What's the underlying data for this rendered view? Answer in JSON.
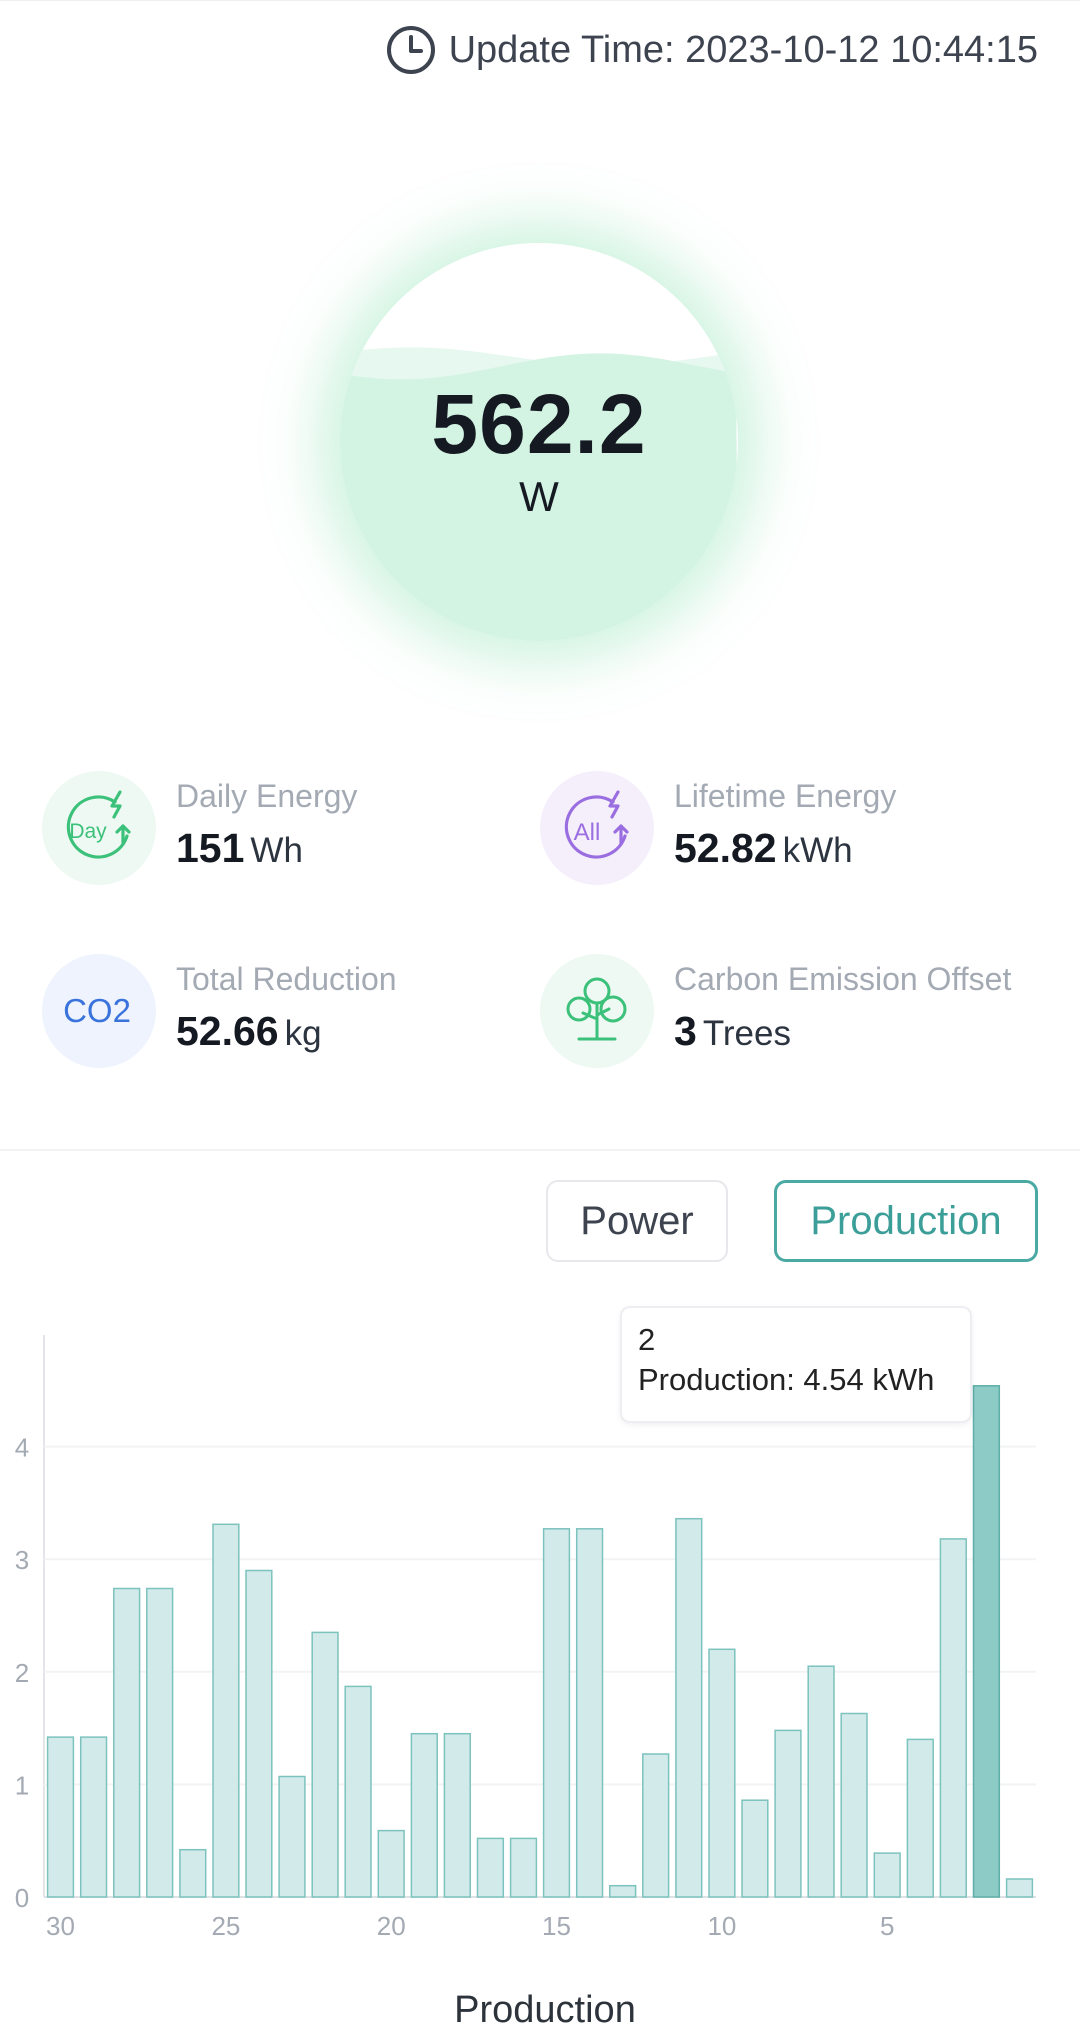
{
  "header": {
    "update_label": "Update Time: 2023-10-12 10:44:15",
    "icon": "clock-icon"
  },
  "gauge": {
    "value": "562.2",
    "unit": "W",
    "fill_level": 0.7,
    "colors": {
      "fill": "#d3f3e3",
      "glow": "#80e0aa"
    }
  },
  "stats": {
    "daily": {
      "label": "Daily Energy",
      "value": "151",
      "unit": "Wh",
      "icon": "day-energy-icon",
      "icon_text": "Day"
    },
    "lifetime": {
      "label": "Lifetime Energy",
      "value": "52.82",
      "unit": "kWh",
      "icon": "all-energy-icon",
      "icon_text": "All"
    },
    "reduction": {
      "label": "Total Reduction",
      "value": "52.66",
      "unit": "kg",
      "icon": "co2-icon",
      "icon_text": "CO2"
    },
    "offset": {
      "label": "Carbon Emission Offset",
      "value": "3",
      "unit": "Trees",
      "icon": "tree-icon"
    }
  },
  "toggle": {
    "power_label": "Power",
    "production_label": "Production",
    "active": "Production"
  },
  "tooltip": {
    "title": "2",
    "text": "Production: 4.54 kWh"
  },
  "chart_data": {
    "type": "bar",
    "xlabel": "Production",
    "ylabel": "",
    "ylim": [
      0,
      5
    ],
    "yticks": [
      0,
      1,
      2,
      3,
      4
    ],
    "grid": true,
    "highlight_index": 28,
    "categories": [
      "30",
      "29",
      "28",
      "27",
      "26",
      "25",
      "24",
      "23",
      "22",
      "21",
      "20",
      "19",
      "18",
      "17",
      "16",
      "15",
      "14",
      "13",
      "12",
      "11",
      "10",
      "9",
      "8",
      "7",
      "6",
      "5",
      "4",
      "3",
      "2",
      "1"
    ],
    "values": [
      1.42,
      1.42,
      2.74,
      2.74,
      0.42,
      3.31,
      2.9,
      1.07,
      2.35,
      1.87,
      0.59,
      1.45,
      1.45,
      0.52,
      0.52,
      3.27,
      3.27,
      0.1,
      1.27,
      3.36,
      2.2,
      0.86,
      1.48,
      2.05,
      1.63,
      0.39,
      1.4,
      3.18,
      4.54,
      0.16
    ],
    "xticks": [
      "30",
      "25",
      "20",
      "15",
      "10",
      "5"
    ],
    "colors": {
      "bar": "#d2ebea",
      "bar_stroke": "#7cc2bd",
      "highlight": "#8dcbc6",
      "highlight_stroke": "#5eaea8"
    }
  }
}
